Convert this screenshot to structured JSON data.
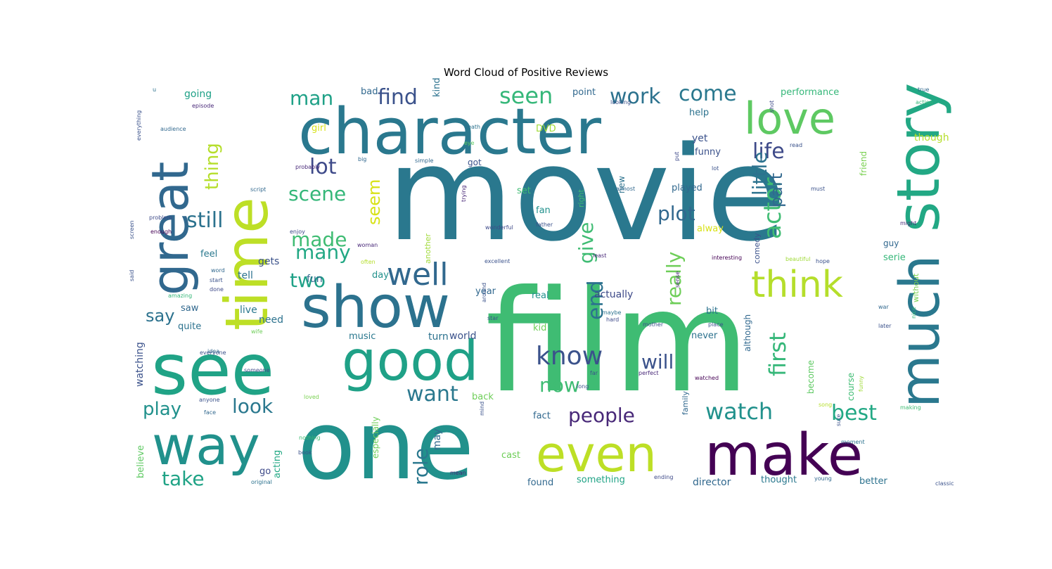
{
  "chart_data": {
    "type": "wordcloud",
    "title": "Word Cloud of Positive Reviews",
    "colormap": "viridis",
    "background": "#ffffff",
    "words": [
      {
        "text": "movie",
        "weight": 1.0,
        "color": "#2a788e"
      },
      {
        "text": "film",
        "weight": 0.9,
        "color": "#3fbc73"
      },
      {
        "text": "one",
        "weight": 0.75,
        "color": "#21918c"
      },
      {
        "text": "character",
        "weight": 0.6,
        "color": "#2a788e"
      },
      {
        "text": "time",
        "weight": 0.58,
        "color": "#bddf26"
      },
      {
        "text": "see",
        "weight": 0.55,
        "color": "#20a386"
      },
      {
        "text": "story",
        "weight": 0.55,
        "color": "#22a884"
      },
      {
        "text": "make",
        "weight": 0.5,
        "color": "#440154"
      },
      {
        "text": "much",
        "weight": 0.47,
        "color": "#2a788e"
      },
      {
        "text": "great",
        "weight": 0.45,
        "color": "#31688e"
      },
      {
        "text": "show",
        "weight": 0.44,
        "color": "#2c728e"
      },
      {
        "text": "good",
        "weight": 0.42,
        "color": "#1fa187"
      },
      {
        "text": "way",
        "weight": 0.42,
        "color": "#21918c"
      },
      {
        "text": "even",
        "weight": 0.4,
        "color": "#bddf26"
      },
      {
        "text": "love",
        "weight": 0.36,
        "color": "#5ec962"
      },
      {
        "text": "think",
        "weight": 0.32,
        "color": "#b5de2b"
      },
      {
        "text": "well",
        "weight": 0.27,
        "color": "#31688e"
      },
      {
        "text": "actor",
        "weight": 0.25,
        "color": "#3fbc73"
      },
      {
        "text": "people",
        "weight": 0.22,
        "color": "#482878"
      },
      {
        "text": "watch",
        "weight": 0.22,
        "color": "#21918c"
      },
      {
        "text": "end",
        "weight": 0.2,
        "color": "#2c728e"
      },
      {
        "text": "know",
        "weight": 0.2,
        "color": "#3b528b"
      },
      {
        "text": "first",
        "weight": 0.2,
        "color": "#35b779"
      },
      {
        "text": "best",
        "weight": 0.2,
        "color": "#22a884"
      },
      {
        "text": "life",
        "weight": 0.2,
        "color": "#3e4a89"
      },
      {
        "text": "really",
        "weight": 0.18,
        "color": "#6ece58"
      },
      {
        "text": "will",
        "weight": 0.19,
        "color": "#3b528b"
      },
      {
        "text": "want",
        "weight": 0.19,
        "color": "#2a788e"
      },
      {
        "text": "work",
        "weight": 0.19,
        "color": "#2c728e"
      },
      {
        "text": "scene",
        "weight": 0.19,
        "color": "#35b779"
      },
      {
        "text": "look",
        "weight": 0.19,
        "color": "#2a788e"
      },
      {
        "text": "plot",
        "weight": 0.18,
        "color": "#31688e"
      },
      {
        "text": "made",
        "weight": 0.18,
        "color": "#3fbc73"
      },
      {
        "text": "many",
        "weight": 0.18,
        "color": "#22a884"
      },
      {
        "text": "still",
        "weight": 0.18,
        "color": "#2c728e"
      },
      {
        "text": "seen",
        "weight": 0.18,
        "color": "#35b779"
      },
      {
        "text": "man",
        "weight": 0.18,
        "color": "#1fa187"
      },
      {
        "text": "come",
        "weight": 0.17,
        "color": "#2a788e"
      },
      {
        "text": "lot",
        "weight": 0.17,
        "color": "#3e4a89"
      },
      {
        "text": "find",
        "weight": 0.17,
        "color": "#3b528b"
      },
      {
        "text": "two",
        "weight": 0.17,
        "color": "#1fa187"
      },
      {
        "text": "play",
        "weight": 0.17,
        "color": "#21918c"
      },
      {
        "text": "take",
        "weight": 0.17,
        "color": "#20a386"
      },
      {
        "text": "now",
        "weight": 0.16,
        "color": "#3fbc73"
      },
      {
        "text": "say",
        "weight": 0.15,
        "color": "#2c728e"
      },
      {
        "text": "little",
        "weight": 0.16,
        "color": "#2c728e"
      },
      {
        "text": "part",
        "weight": 0.16,
        "color": "#31688e"
      },
      {
        "text": "give",
        "weight": 0.16,
        "color": "#3fbc73"
      },
      {
        "text": "seem",
        "weight": 0.15,
        "color": "#d8e219"
      },
      {
        "text": "thing",
        "weight": 0.15,
        "color": "#b5de2b"
      },
      {
        "text": "role",
        "weight": 0.15,
        "color": "#2a788e"
      },
      {
        "text": "watching",
        "weight": 0.08,
        "color": "#3b528b"
      },
      {
        "text": "actually",
        "weight": 0.07,
        "color": "#3e4a89"
      },
      {
        "text": "something",
        "weight": 0.07,
        "color": "#20a386"
      },
      {
        "text": "director",
        "weight": 0.07,
        "color": "#31688e"
      },
      {
        "text": "performance",
        "weight": 0.06,
        "color": "#35b779"
      },
      {
        "text": "played",
        "weight": 0.06,
        "color": "#31688e"
      },
      {
        "text": "funny",
        "weight": 0.06,
        "color": "#3b528b"
      },
      {
        "text": "although",
        "weight": 0.06,
        "color": "#31688e"
      },
      {
        "text": "especially",
        "weight": 0.06,
        "color": "#6ece58"
      },
      {
        "text": "believe",
        "weight": 0.06,
        "color": "#5ec962"
      },
      {
        "text": "acting",
        "weight": 0.06,
        "color": "#22a884"
      },
      {
        "text": "course",
        "weight": 0.06,
        "color": "#3fbc73"
      },
      {
        "text": "become",
        "weight": 0.06,
        "color": "#5ec962"
      },
      {
        "text": "though",
        "weight": 0.06,
        "color": "#b5de2b"
      },
      {
        "text": "friend",
        "weight": 0.06,
        "color": "#7ad151"
      },
      {
        "text": "quite",
        "weight": 0.06,
        "color": "#2c728e"
      },
      {
        "text": "music",
        "weight": 0.06,
        "color": "#2a788e"
      },
      {
        "text": "never",
        "weight": 0.06,
        "color": "#2c728e"
      },
      {
        "text": "going",
        "weight": 0.06,
        "color": "#1fa187"
      },
      {
        "text": "found",
        "weight": 0.06,
        "color": "#31688e"
      },
      {
        "text": "thought",
        "weight": 0.06,
        "color": "#2a788e"
      },
      {
        "text": "better",
        "weight": 0.06,
        "color": "#2c728e"
      },
      {
        "text": "comedy",
        "weight": 0.05,
        "color": "#3b528b"
      },
      {
        "text": "without",
        "weight": 0.05,
        "color": "#7ad151"
      },
      {
        "text": "right",
        "weight": 0.05,
        "color": "#3fbc73"
      },
      {
        "text": "another",
        "weight": 0.05,
        "color": "#a0da39"
      },
      {
        "text": "family",
        "weight": 0.05,
        "color": "#31688e"
      },
      {
        "text": "world",
        "weight": 0.05,
        "color": "#3b528b"
      },
      {
        "text": "turn",
        "weight": 0.06,
        "color": "#2c728e"
      },
      {
        "text": "back",
        "weight": 0.06,
        "color": "#6ece58"
      },
      {
        "text": "real",
        "weight": 0.06,
        "color": "#21918c"
      },
      {
        "text": "need",
        "weight": 0.06,
        "color": "#2c728e"
      },
      {
        "text": "live",
        "weight": 0.06,
        "color": "#2a788e"
      },
      {
        "text": "tell",
        "weight": 0.06,
        "color": "#2c728e"
      },
      {
        "text": "gets",
        "weight": 0.06,
        "color": "#3b528b"
      },
      {
        "text": "feel",
        "weight": 0.06,
        "color": "#2a788e"
      },
      {
        "text": "fun",
        "weight": 0.06,
        "color": "#31688e"
      },
      {
        "text": "saw",
        "weight": 0.06,
        "color": "#31688e"
      },
      {
        "text": "day",
        "weight": 0.06,
        "color": "#21918c"
      },
      {
        "text": "year",
        "weight": 0.06,
        "color": "#31688e"
      },
      {
        "text": "kid",
        "weight": 0.06,
        "color": "#6ece58"
      },
      {
        "text": "bit",
        "weight": 0.06,
        "color": "#2c728e"
      },
      {
        "text": "fact",
        "weight": 0.06,
        "color": "#31688e"
      },
      {
        "text": "cast",
        "weight": 0.06,
        "color": "#6ece58"
      },
      {
        "text": "may",
        "weight": 0.06,
        "color": "#31688e"
      },
      {
        "text": "go",
        "weight": 0.06,
        "color": "#3e4a89"
      },
      {
        "text": "alway",
        "weight": 0.06,
        "color": "#d8e219"
      },
      {
        "text": "guy",
        "weight": 0.06,
        "color": "#31688e"
      },
      {
        "text": "serie",
        "weight": 0.06,
        "color": "#35b779"
      },
      {
        "text": "set",
        "weight": 0.06,
        "color": "#3fbc73"
      },
      {
        "text": "fan",
        "weight": 0.06,
        "color": "#21918c"
      },
      {
        "text": "got",
        "weight": 0.06,
        "color": "#3b528b"
      },
      {
        "text": "new",
        "weight": 0.05,
        "color": "#2c728e"
      },
      {
        "text": "yet",
        "weight": 0.05,
        "color": "#3b528b"
      },
      {
        "text": "DVD",
        "weight": 0.06,
        "color": "#a0da39"
      },
      {
        "text": "help",
        "weight": 0.05,
        "color": "#2c728e"
      },
      {
        "text": "point",
        "weight": 0.05,
        "color": "#31688e"
      },
      {
        "text": "kind",
        "weight": 0.05,
        "color": "#2c728e"
      },
      {
        "text": "girl",
        "weight": 0.05,
        "color": "#d8e219"
      },
      {
        "text": "bad",
        "weight": 0.05,
        "color": "#31688e"
      },
      {
        "text": "u",
        "weight": 0.05,
        "color": "#2c728e"
      },
      {
        "text": "episode",
        "weight": 0.03,
        "color": "#482878"
      },
      {
        "text": "audience",
        "weight": 0.03,
        "color": "#31688e"
      },
      {
        "text": "everything",
        "weight": 0.03,
        "color": "#3b528b"
      },
      {
        "text": "probably",
        "weight": 0.03,
        "color": "#482878"
      },
      {
        "text": "big",
        "weight": 0.03,
        "color": "#31688e"
      },
      {
        "text": "script",
        "weight": 0.03,
        "color": "#31688e"
      },
      {
        "text": "screen",
        "weight": 0.03,
        "color": "#3b528b"
      },
      {
        "text": "problem",
        "weight": 0.03,
        "color": "#3e4a89"
      },
      {
        "text": "enough",
        "weight": 0.03,
        "color": "#440154"
      },
      {
        "text": "enjoy",
        "weight": 0.03,
        "color": "#3e4a89"
      },
      {
        "text": "woman",
        "weight": 0.03,
        "color": "#482878"
      },
      {
        "text": "word",
        "weight": 0.03,
        "color": "#31688e"
      },
      {
        "text": "start",
        "weight": 0.03,
        "color": "#3b528b"
      },
      {
        "text": "done",
        "weight": 0.03,
        "color": "#3e4a89"
      },
      {
        "text": "said",
        "weight": 0.03,
        "color": "#3b528b"
      },
      {
        "text": "amazing",
        "weight": 0.03,
        "color": "#35b779"
      },
      {
        "text": "everyone",
        "weight": 0.03,
        "color": "#3b528b"
      },
      {
        "text": "someone",
        "weight": 0.03,
        "color": "#3e4a89"
      },
      {
        "text": "anyone",
        "weight": 0.03,
        "color": "#3b528b"
      },
      {
        "text": "face",
        "weight": 0.03,
        "color": "#31688e"
      },
      {
        "text": "nothing",
        "weight": 0.03,
        "color": "#3fbc73"
      },
      {
        "text": "book",
        "weight": 0.03,
        "color": "#3b528b"
      },
      {
        "text": "original",
        "weight": 0.03,
        "color": "#2c728e"
      },
      {
        "text": "mean",
        "weight": 0.03,
        "color": "#482878"
      },
      {
        "text": "wife",
        "weight": 0.03,
        "color": "#6ece58"
      },
      {
        "text": "loved",
        "weight": 0.03,
        "color": "#7ad151"
      },
      {
        "text": "often",
        "weight": 0.03,
        "color": "#b5de2b"
      },
      {
        "text": "excellent",
        "weight": 0.03,
        "color": "#3b528b"
      },
      {
        "text": "trying",
        "weight": 0.03,
        "color": "#482878"
      },
      {
        "text": "wonderful",
        "weight": 0.03,
        "color": "#3e4a89"
      },
      {
        "text": "father",
        "weight": 0.03,
        "color": "#3b528b"
      },
      {
        "text": "almost",
        "weight": 0.03,
        "color": "#31688e"
      },
      {
        "text": "least",
        "weight": 0.03,
        "color": "#482878"
      },
      {
        "text": "interesting",
        "weight": 0.03,
        "color": "#440154"
      },
      {
        "text": "beautiful",
        "weight": 0.03,
        "color": "#a0da39"
      },
      {
        "text": "hope",
        "weight": 0.03,
        "color": "#3b528b"
      },
      {
        "text": "might",
        "weight": 0.03,
        "color": "#482878"
      },
      {
        "text": "must",
        "weight": 0.03,
        "color": "#3b528b"
      },
      {
        "text": "simple",
        "weight": 0.03,
        "color": "#31688e"
      },
      {
        "text": "lot",
        "weight": 0.02,
        "color": "#3b528b"
      },
      {
        "text": "put",
        "weight": 0.03,
        "color": "#3e4a89"
      },
      {
        "text": "read",
        "weight": 0.03,
        "color": "#3b528b"
      },
      {
        "text": "shot",
        "weight": 0.03,
        "color": "#3e4a89"
      },
      {
        "text": "looking",
        "weight": 0.03,
        "color": "#3b528b"
      },
      {
        "text": "death",
        "weight": 0.03,
        "color": "#2c728e"
      },
      {
        "text": "eye",
        "weight": 0.03,
        "color": "#5ec962"
      },
      {
        "text": "true",
        "weight": 0.03,
        "color": "#31688e"
      },
      {
        "text": "action",
        "weight": 0.03,
        "color": "#35b779"
      },
      {
        "text": "war",
        "weight": 0.03,
        "color": "#31688e"
      },
      {
        "text": "later",
        "weight": 0.03,
        "color": "#3b528b"
      },
      {
        "text": "nice",
        "weight": 0.03,
        "color": "#35b779"
      },
      {
        "text": "making",
        "weight": 0.03,
        "color": "#3fbc73"
      },
      {
        "text": "classic",
        "weight": 0.03,
        "color": "#3b528b"
      },
      {
        "text": "young",
        "weight": 0.03,
        "color": "#31688e"
      },
      {
        "text": "ending",
        "weight": 0.03,
        "color": "#3e4a89"
      },
      {
        "text": "funny",
        "weight": 0.03,
        "color": "#a0da39"
      },
      {
        "text": "sure",
        "weight": 0.03,
        "color": "#3b528b"
      },
      {
        "text": "moment",
        "weight": 0.03,
        "color": "#2c728e"
      },
      {
        "text": "mind",
        "weight": 0.03,
        "color": "#3b528b"
      },
      {
        "text": "maybe",
        "weight": 0.03,
        "color": "#2c728e"
      },
      {
        "text": "hard",
        "weight": 0.03,
        "color": "#3e4a89"
      },
      {
        "text": "mother",
        "weight": 0.03,
        "color": "#3b528b"
      },
      {
        "text": "place",
        "weight": 0.03,
        "color": "#3b528b"
      },
      {
        "text": "far",
        "weight": 0.03,
        "color": "#3b528b"
      },
      {
        "text": "perfect",
        "weight": 0.03,
        "color": "#482878"
      },
      {
        "text": "watched",
        "weight": 0.03,
        "color": "#440154"
      },
      {
        "text": "long",
        "weight": 0.03,
        "color": "#3b528b"
      },
      {
        "text": "around",
        "weight": 0.03,
        "color": "#3b528b"
      },
      {
        "text": "star",
        "weight": 0.03,
        "color": "#3b528b"
      },
      {
        "text": "idea",
        "weight": 0.03,
        "color": "#31688e"
      },
      {
        "text": "sense",
        "weight": 0.03,
        "color": "#482878"
      },
      {
        "text": "song",
        "weight": 0.03,
        "color": "#b5de2b"
      },
      {
        "text": "rather",
        "weight": 0.03,
        "color": "#3b528b"
      }
    ]
  }
}
